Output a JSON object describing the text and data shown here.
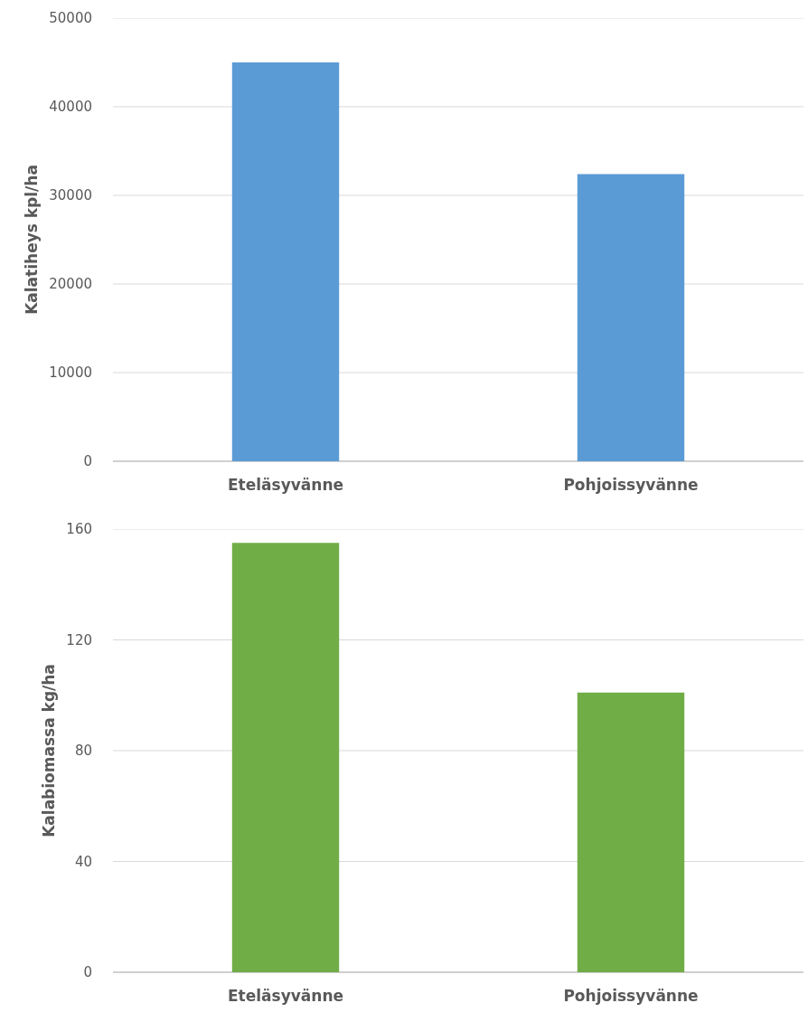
{
  "chart_data": [
    {
      "type": "bar",
      "ylabel": "Kalatiheys kpl/ha",
      "categories": [
        "Eteläsyvänne",
        "Pohjoissyvänne"
      ],
      "values": [
        45000,
        32400
      ],
      "color": "#5b9bd5",
      "ylim": [
        0,
        50000
      ],
      "yticks": [
        0,
        10000,
        20000,
        30000,
        40000,
        50000
      ],
      "grid": "y"
    },
    {
      "type": "bar",
      "ylabel": "Kalabiomassa kg/ha",
      "categories": [
        "Eteläsyvänne",
        "Pohjoissyvänne"
      ],
      "values": [
        155,
        101
      ],
      "color": "#70ad47",
      "ylim": [
        0,
        160
      ],
      "yticks": [
        0,
        40,
        80,
        120,
        160
      ],
      "grid": "y"
    }
  ]
}
